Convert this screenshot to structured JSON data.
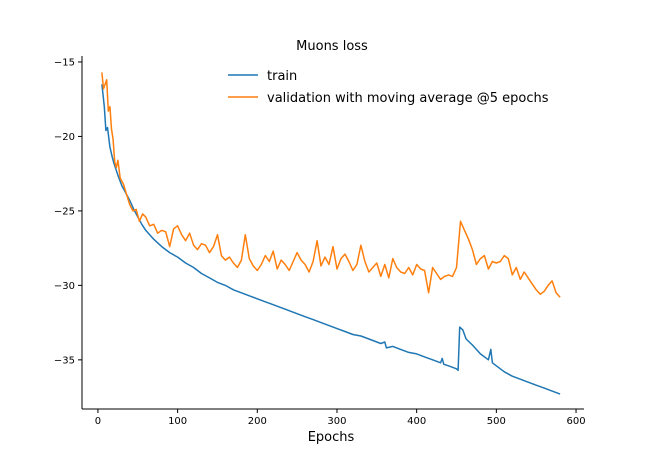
{
  "chart_data": {
    "type": "line",
    "title": "Muons loss",
    "xlabel": "Epochs",
    "ylabel": "",
    "xlim": [
      -20,
      610
    ],
    "ylim": [
      -38.3,
      -14.6
    ],
    "xticks": [
      0,
      100,
      200,
      300,
      400,
      500,
      600
    ],
    "yticks": [
      -15,
      -20,
      -25,
      -30,
      -35
    ],
    "grid": false,
    "legend": "top-center",
    "series": [
      {
        "name": "train",
        "color": "#1f77b4",
        "points": [
          [
            5,
            -16.5
          ],
          [
            8,
            -18.0
          ],
          [
            10,
            -19.6
          ],
          [
            12,
            -19.4
          ],
          [
            15,
            -20.7
          ],
          [
            18,
            -21.4
          ],
          [
            20,
            -21.8
          ],
          [
            25,
            -22.6
          ],
          [
            30,
            -23.3
          ],
          [
            35,
            -23.8
          ],
          [
            40,
            -24.3
          ],
          [
            45,
            -24.9
          ],
          [
            50,
            -25.4
          ],
          [
            55,
            -25.9
          ],
          [
            60,
            -26.3
          ],
          [
            70,
            -26.9
          ],
          [
            80,
            -27.4
          ],
          [
            90,
            -27.8
          ],
          [
            100,
            -28.1
          ],
          [
            110,
            -28.5
          ],
          [
            120,
            -28.8
          ],
          [
            130,
            -29.2
          ],
          [
            140,
            -29.5
          ],
          [
            150,
            -29.8
          ],
          [
            160,
            -30.0
          ],
          [
            170,
            -30.3
          ],
          [
            180,
            -30.5
          ],
          [
            190,
            -30.7
          ],
          [
            200,
            -30.9
          ],
          [
            210,
            -31.1
          ],
          [
            220,
            -31.3
          ],
          [
            230,
            -31.5
          ],
          [
            240,
            -31.7
          ],
          [
            250,
            -31.9
          ],
          [
            260,
            -32.1
          ],
          [
            270,
            -32.3
          ],
          [
            280,
            -32.5
          ],
          [
            290,
            -32.7
          ],
          [
            300,
            -32.9
          ],
          [
            310,
            -33.1
          ],
          [
            320,
            -33.3
          ],
          [
            330,
            -33.4
          ],
          [
            340,
            -33.6
          ],
          [
            350,
            -33.8
          ],
          [
            355,
            -33.9
          ],
          [
            360,
            -33.8
          ],
          [
            362,
            -34.2
          ],
          [
            370,
            -34.1
          ],
          [
            380,
            -34.3
          ],
          [
            390,
            -34.5
          ],
          [
            400,
            -34.6
          ],
          [
            410,
            -34.8
          ],
          [
            420,
            -35.0
          ],
          [
            430,
            -35.2
          ],
          [
            432,
            -34.9
          ],
          [
            434,
            -35.3
          ],
          [
            440,
            -35.4
          ],
          [
            450,
            -35.6
          ],
          [
            452,
            -35.7
          ],
          [
            454,
            -32.8
          ],
          [
            458,
            -33.0
          ],
          [
            462,
            -33.6
          ],
          [
            470,
            -34.0
          ],
          [
            480,
            -34.6
          ],
          [
            490,
            -35.0
          ],
          [
            493,
            -34.3
          ],
          [
            495,
            -35.2
          ],
          [
            500,
            -35.4
          ],
          [
            510,
            -35.8
          ],
          [
            520,
            -36.1
          ],
          [
            530,
            -36.3
          ],
          [
            540,
            -36.5
          ],
          [
            550,
            -36.7
          ],
          [
            560,
            -36.9
          ],
          [
            570,
            -37.1
          ],
          [
            575,
            -37.2
          ],
          [
            580,
            -37.3
          ]
        ]
      },
      {
        "name": "validation with moving average @5 epochs",
        "color": "#ff7f0e",
        "points": [
          [
            5,
            -15.7
          ],
          [
            7,
            -16.8
          ],
          [
            9,
            -16.5
          ],
          [
            11,
            -16.2
          ],
          [
            13,
            -18.3
          ],
          [
            15,
            -18.0
          ],
          [
            17,
            -19.5
          ],
          [
            19,
            -20.2
          ],
          [
            21,
            -21.7
          ],
          [
            23,
            -22.1
          ],
          [
            25,
            -21.6
          ],
          [
            28,
            -22.8
          ],
          [
            32,
            -23.2
          ],
          [
            36,
            -23.9
          ],
          [
            40,
            -24.6
          ],
          [
            44,
            -25.0
          ],
          [
            48,
            -24.9
          ],
          [
            52,
            -25.7
          ],
          [
            56,
            -25.2
          ],
          [
            60,
            -25.4
          ],
          [
            65,
            -26.0
          ],
          [
            70,
            -25.9
          ],
          [
            75,
            -26.5
          ],
          [
            80,
            -26.3
          ],
          [
            85,
            -26.4
          ],
          [
            90,
            -27.4
          ],
          [
            95,
            -26.2
          ],
          [
            100,
            -26.0
          ],
          [
            105,
            -26.6
          ],
          [
            110,
            -27.0
          ],
          [
            115,
            -26.5
          ],
          [
            120,
            -27.3
          ],
          [
            125,
            -27.6
          ],
          [
            130,
            -27.2
          ],
          [
            135,
            -27.3
          ],
          [
            140,
            -27.8
          ],
          [
            145,
            -27.4
          ],
          [
            150,
            -26.6
          ],
          [
            155,
            -28.0
          ],
          [
            160,
            -28.3
          ],
          [
            165,
            -28.1
          ],
          [
            170,
            -28.5
          ],
          [
            175,
            -28.8
          ],
          [
            180,
            -28.3
          ],
          [
            185,
            -26.6
          ],
          [
            190,
            -28.2
          ],
          [
            195,
            -28.7
          ],
          [
            200,
            -29.0
          ],
          [
            205,
            -28.6
          ],
          [
            210,
            -28.0
          ],
          [
            215,
            -28.4
          ],
          [
            220,
            -27.7
          ],
          [
            225,
            -28.9
          ],
          [
            230,
            -28.3
          ],
          [
            235,
            -28.6
          ],
          [
            240,
            -29.0
          ],
          [
            245,
            -28.4
          ],
          [
            250,
            -27.8
          ],
          [
            255,
            -28.3
          ],
          [
            260,
            -28.6
          ],
          [
            265,
            -29.1
          ],
          [
            270,
            -28.4
          ],
          [
            275,
            -27.0
          ],
          [
            280,
            -28.7
          ],
          [
            285,
            -28.1
          ],
          [
            290,
            -28.6
          ],
          [
            295,
            -27.4
          ],
          [
            300,
            -28.9
          ],
          [
            305,
            -28.2
          ],
          [
            310,
            -27.9
          ],
          [
            315,
            -28.4
          ],
          [
            320,
            -29.0
          ],
          [
            325,
            -28.6
          ],
          [
            330,
            -27.3
          ],
          [
            335,
            -28.4
          ],
          [
            340,
            -29.1
          ],
          [
            345,
            -28.8
          ],
          [
            350,
            -28.5
          ],
          [
            355,
            -29.4
          ],
          [
            360,
            -28.6
          ],
          [
            365,
            -29.5
          ],
          [
            370,
            -28.2
          ],
          [
            375,
            -28.8
          ],
          [
            380,
            -29.1
          ],
          [
            385,
            -29.2
          ],
          [
            390,
            -28.8
          ],
          [
            395,
            -29.3
          ],
          [
            400,
            -28.6
          ],
          [
            405,
            -28.9
          ],
          [
            410,
            -29.0
          ],
          [
            415,
            -30.5
          ],
          [
            420,
            -28.8
          ],
          [
            425,
            -29.2
          ],
          [
            430,
            -29.6
          ],
          [
            435,
            -29.4
          ],
          [
            440,
            -29.3
          ],
          [
            445,
            -29.4
          ],
          [
            450,
            -28.8
          ],
          [
            455,
            -25.7
          ],
          [
            460,
            -26.3
          ],
          [
            465,
            -26.9
          ],
          [
            470,
            -27.6
          ],
          [
            475,
            -28.6
          ],
          [
            480,
            -28.2
          ],
          [
            485,
            -28.0
          ],
          [
            490,
            -28.9
          ],
          [
            495,
            -28.4
          ],
          [
            500,
            -28.5
          ],
          [
            505,
            -28.4
          ],
          [
            510,
            -28.0
          ],
          [
            515,
            -28.2
          ],
          [
            520,
            -29.3
          ],
          [
            525,
            -28.8
          ],
          [
            530,
            -29.6
          ],
          [
            535,
            -29.1
          ],
          [
            540,
            -29.5
          ],
          [
            545,
            -29.9
          ],
          [
            550,
            -30.3
          ],
          [
            555,
            -30.6
          ],
          [
            560,
            -30.4
          ],
          [
            565,
            -30.0
          ],
          [
            570,
            -29.7
          ],
          [
            575,
            -30.5
          ],
          [
            580,
            -30.8
          ]
        ]
      }
    ]
  }
}
